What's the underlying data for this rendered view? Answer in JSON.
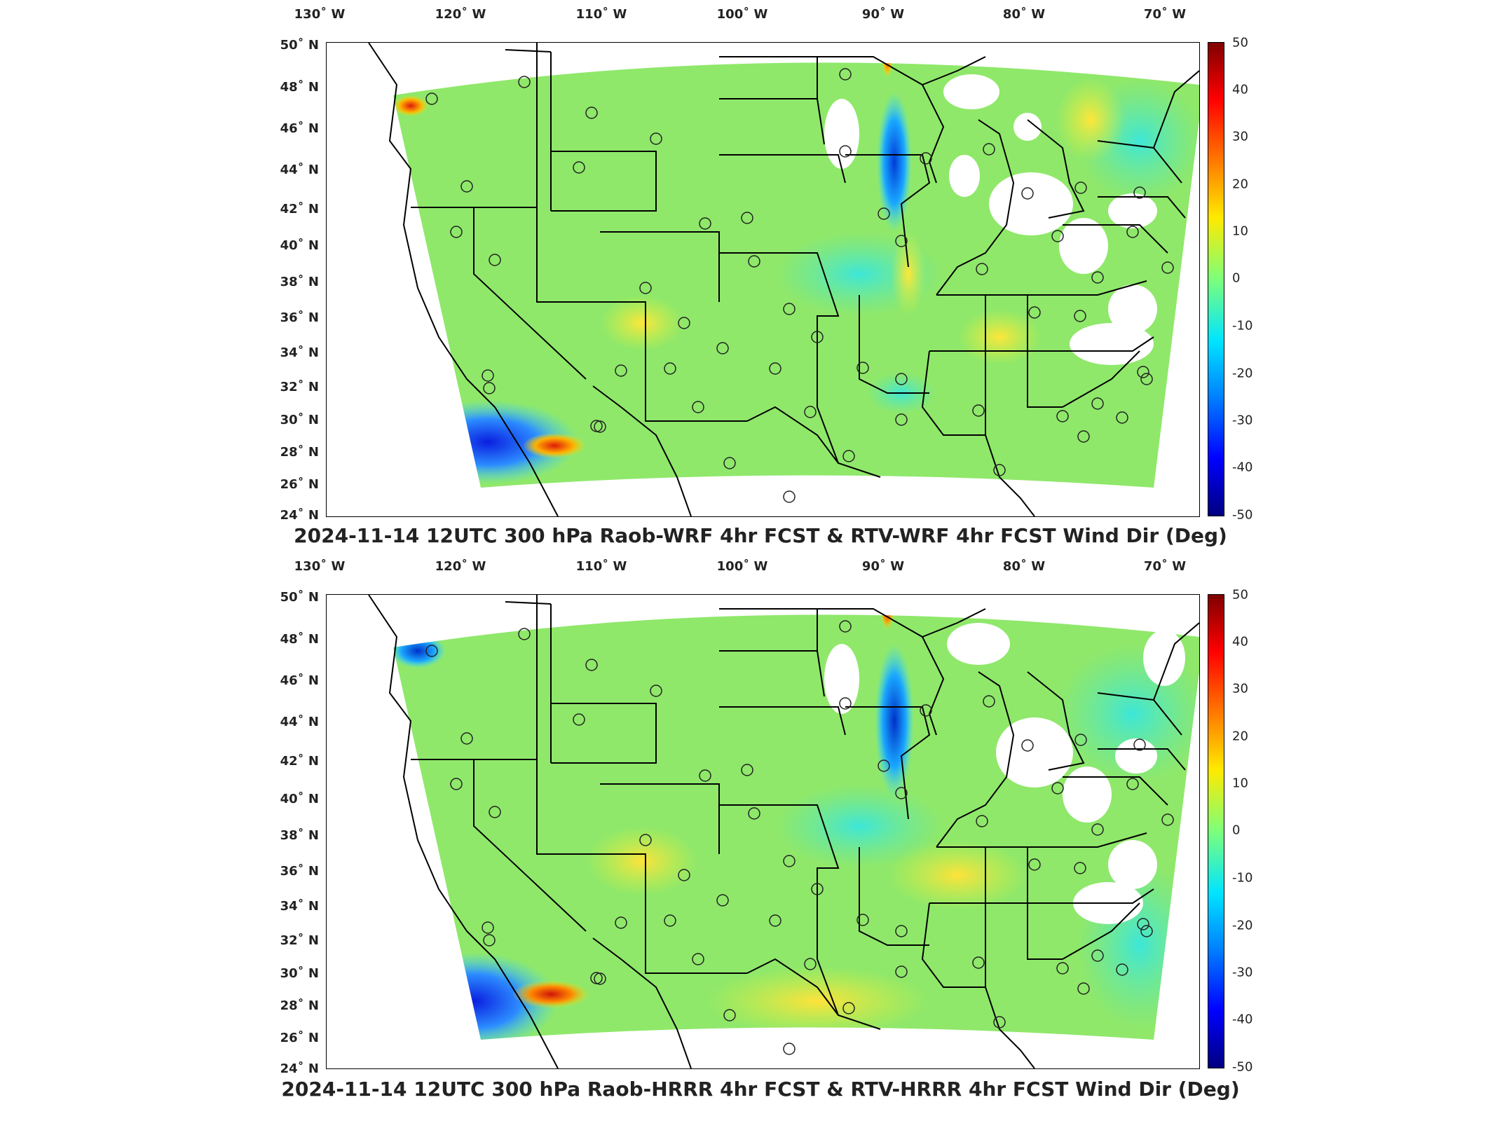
{
  "lon_ticks": [
    "130˚ W",
    "120˚ W",
    "110˚ W",
    "100˚ W",
    "90˚ W",
    "80˚ W",
    "70˚ W"
  ],
  "lat_ticks": [
    "50˚ N",
    "48˚ N",
    "46˚ N",
    "44˚ N",
    "42˚ N",
    "40˚ N",
    "38˚ N",
    "36˚ N",
    "34˚ N",
    "32˚ N",
    "30˚ N",
    "28˚ N",
    "26˚ N",
    "24˚ N"
  ],
  "colorbar": {
    "ticks": [
      "50",
      "40",
      "30",
      "20",
      "10",
      "0",
      "-10",
      "-20",
      "-30",
      "-40",
      "-50"
    ],
    "min": -50,
    "max": 50
  },
  "panels": [
    {
      "title": "2024-11-14 12UTC 300 hPa Raob-WRF 4hr FCST & RTV-WRF 4hr FCST Wind Dir (Deg)"
    },
    {
      "title": "2024-11-14 12UTC 300 hPa Raob-HRRR 4hr FCST & RTV-HRRR 4hr FCST Wind Dir (Deg)"
    }
  ],
  "colors": {
    "field_base": "#8fe86a",
    "frame": "#000000",
    "background": "#ffffff"
  }
}
